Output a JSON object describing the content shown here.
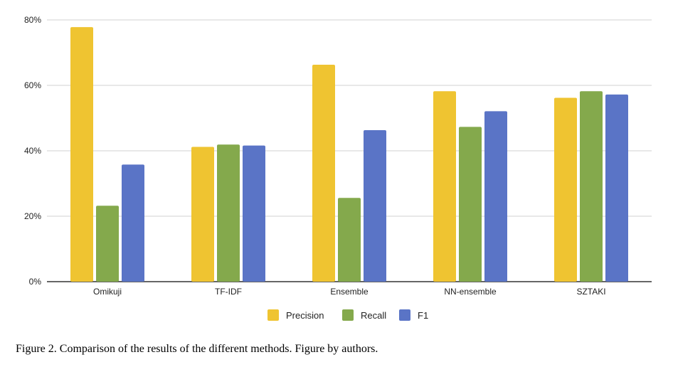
{
  "chart_data": {
    "type": "bar",
    "title": "",
    "xlabel": "",
    "ylabel": "",
    "categories": [
      "Omikuji",
      "TF-IDF",
      "Ensemble",
      "NN-ensemble",
      "SZTAKI"
    ],
    "series": [
      {
        "name": "Precision",
        "color": "#EFC431",
        "values": [
          77.8,
          41.2,
          66.3,
          58.2,
          56.2
        ]
      },
      {
        "name": "Recall",
        "color": "#84A94C",
        "values": [
          23.2,
          41.9,
          25.6,
          47.3,
          58.2
        ]
      },
      {
        "name": "F1",
        "color": "#5A74C6",
        "values": [
          35.8,
          41.6,
          46.3,
          52.1,
          57.2
        ]
      }
    ],
    "ylim": [
      0,
      80
    ],
    "yticks": [
      0,
      20,
      40,
      60,
      80
    ],
    "ytick_labels": [
      "0%",
      "20%",
      "40%",
      "60%",
      "80%"
    ],
    "grid": true,
    "legend_position": "bottom-center"
  },
  "caption": "Figure 2. Comparison of the results of the different methods. Figure by authors."
}
